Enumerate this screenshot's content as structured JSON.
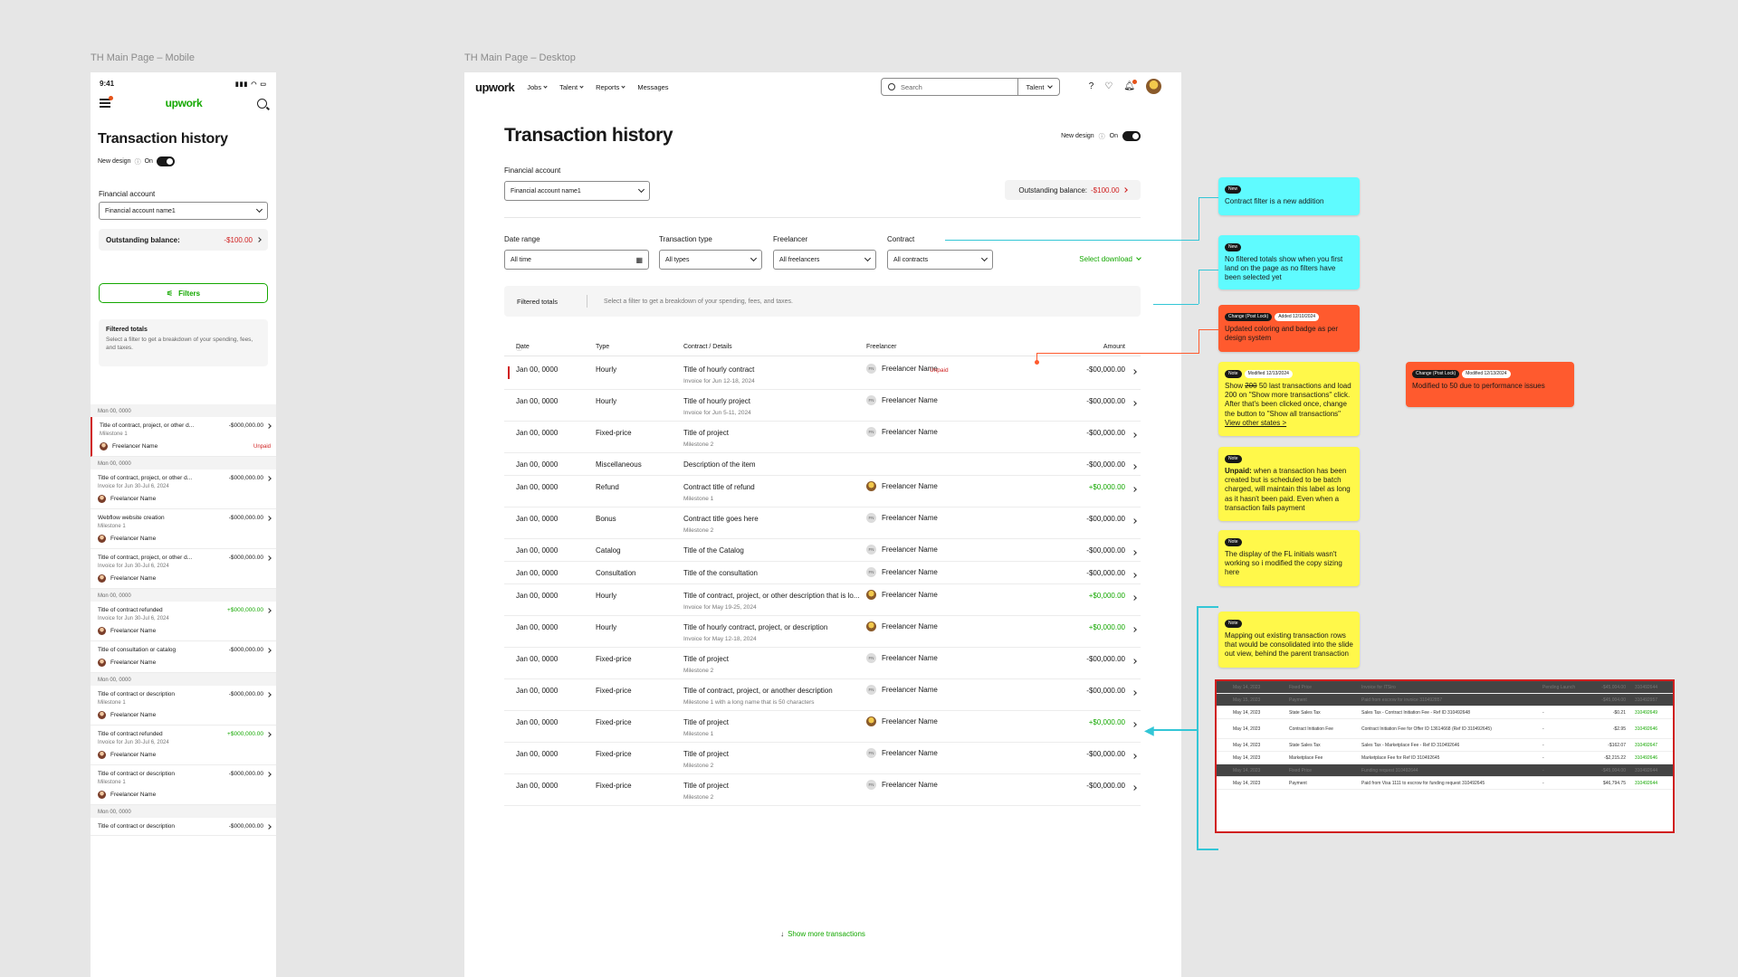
{
  "canvas": {
    "mobile_label": "TH Main Page – Mobile",
    "desktop_label": "TH Main Page – Desktop"
  },
  "mobile": {
    "time": "9:41",
    "logo": "upwork",
    "title": "Transaction history",
    "new_design": "New design",
    "on": "On",
    "financial_account_label": "Financial account",
    "financial_account_value": "Financial account name1",
    "outstanding_label": "Outstanding balance:",
    "outstanding_value": "-$100.00",
    "filters_label": "Filters",
    "filtered_totals_title": "Filtered totals",
    "filtered_totals_desc": "Select a filter to get a breakdown of your spending, fees, and taxes.",
    "list": [
      {
        "date": "Mon 00, 0000"
      },
      {
        "title": "Title of contract, project, or other d...",
        "amount": "-$000,000.00",
        "sub": "Milestone 1",
        "freelancer": "Freelancer Name",
        "badge": "Unpaid",
        "unpaid": true
      },
      {
        "date": "Mon 00, 0000"
      },
      {
        "title": "Title of contract, project, or other d...",
        "amount": "-$000,000.00",
        "sub": "Invoice for Jun 30-Jul 6, 2024",
        "freelancer": "Freelancer Name"
      },
      {
        "title": "Webflow website creation",
        "amount": "-$000,000.00",
        "sub": "Milestone 1",
        "freelancer": "Freelancer Name"
      },
      {
        "title": "Title of contract, project, or other d...",
        "amount": "-$000,000.00",
        "sub": "Invoice for Jun 30-Jul 6, 2024",
        "freelancer": "Freelancer Name"
      },
      {
        "date": "Mon 00, 0000"
      },
      {
        "title": "Title of contract refunded",
        "amount": "+$000,000.00",
        "sub": "Invoice for Jun 30-Jul 6, 2024",
        "freelancer": "Freelancer Name",
        "positive": true
      },
      {
        "title": "Title of consultation or catalog",
        "amount": "-$000,000.00",
        "sub": "",
        "freelancer": "Freelancer Name"
      },
      {
        "date": "Mon 00, 0000"
      },
      {
        "title": "Title of contract or description",
        "amount": "-$000,000.00",
        "sub": "Milestone 1",
        "freelancer": "Freelancer Name"
      },
      {
        "title": "Title of contract refunded",
        "amount": "+$000,000.00",
        "sub": "Invoice for Jun 30-Jul 6, 2024",
        "freelancer": "Freelancer Name",
        "positive": true
      },
      {
        "title": "Title of contract or description",
        "amount": "-$000,000.00",
        "sub": "Milestone 1",
        "freelancer": "Freelancer Name"
      },
      {
        "date": "Mon 00, 0000"
      },
      {
        "title": "Title of contract or description",
        "amount": "-$000,000.00",
        "sub": "",
        "freelancer": ""
      }
    ]
  },
  "desktop": {
    "logo": "upwork",
    "nav": [
      "Jobs",
      "Talent",
      "Reports",
      "Messages"
    ],
    "search_placeholder": "Search",
    "search_scope": "Talent",
    "title": "Transaction history",
    "new_design": "New design",
    "on": "On",
    "financial_account_label": "Financial account",
    "financial_account_value": "Financial account name1",
    "outstanding_label": "Outstanding balance:",
    "outstanding_value": "-$100.00",
    "filters": [
      {
        "label": "Date range",
        "value": "All time"
      },
      {
        "label": "Transaction type",
        "value": "All types"
      },
      {
        "label": "Freelancer",
        "value": "All freelancers"
      },
      {
        "label": "Contract",
        "value": "All contracts"
      }
    ],
    "select_download": "Select download",
    "filtered_totals": "Filtered totals",
    "filtered_totals_desc": "Select a filter to get a breakdown of your spending, fees, and taxes.",
    "columns": {
      "date": "Date",
      "type": "Type",
      "contract": "Contract / Details",
      "freelancer": "Freelancer",
      "amount": "Amount"
    },
    "rows": [
      {
        "date": "Jan 00, 0000",
        "type": "Hourly",
        "title": "Title of hourly contract",
        "sub": "Invoice for Jun 12-18, 2024",
        "freelancer": "Freelancer Name",
        "amount": "-$00,000.00",
        "badge": "Unpaid",
        "unpaid": true,
        "avatar": "initials"
      },
      {
        "date": "Jan 00, 0000",
        "type": "Hourly",
        "title": "Title of hourly project",
        "sub": "Invoice for Jun 5-11, 2024",
        "freelancer": "Freelancer Name",
        "amount": "-$00,000.00",
        "avatar": "initials"
      },
      {
        "date": "Jan 00, 0000",
        "type": "Fixed-price",
        "title": "Title of project",
        "sub": "Milestone 2",
        "freelancer": "Freelancer Name",
        "amount": "-$00,000.00",
        "avatar": "initials"
      },
      {
        "date": "Jan 00, 0000",
        "type": "Miscellaneous",
        "title": "Description of the item",
        "sub": "",
        "freelancer": "",
        "amount": "-$00,000.00"
      },
      {
        "date": "Jan 00, 0000",
        "type": "Refund",
        "title": "Contract title of refund",
        "sub": "Milestone 1",
        "freelancer": "Freelancer Name",
        "amount": "+$0,000.00",
        "positive": true,
        "avatar": "photo"
      },
      {
        "date": "Jan 00, 0000",
        "type": "Bonus",
        "title": "Contract title goes here",
        "sub": "Milestone 2",
        "freelancer": "Freelancer Name",
        "amount": "-$00,000.00",
        "avatar": "initials"
      },
      {
        "date": "Jan 00, 0000",
        "type": "Catalog",
        "title": "Title of the Catalog",
        "sub": "",
        "freelancer": "Freelancer Name",
        "amount": "-$00,000.00",
        "avatar": "initials"
      },
      {
        "date": "Jan 00, 0000",
        "type": "Consultation",
        "title": "Title of the consultation",
        "sub": "",
        "freelancer": "Freelancer Name",
        "amount": "-$00,000.00",
        "avatar": "initials"
      },
      {
        "date": "Jan 00, 0000",
        "type": "Hourly",
        "title": "Title of contract, project, or other description that is lo...",
        "sub": "Invoice for May 19-25, 2024",
        "freelancer": "Freelancer Name",
        "amount": "+$0,000.00",
        "positive": true,
        "avatar": "photo"
      },
      {
        "date": "Jan 00, 0000",
        "type": "Hourly",
        "title": "Title of hourly contract, project, or description",
        "sub": "Invoice for May 12-18, 2024",
        "freelancer": "Freelancer Name",
        "amount": "+$0,000.00",
        "positive": true,
        "avatar": "photo"
      },
      {
        "date": "Jan 00, 0000",
        "type": "Fixed-price",
        "title": "Title of project",
        "sub": "Milestone 2",
        "freelancer": "Freelancer Name",
        "amount": "-$00,000.00",
        "avatar": "initials"
      },
      {
        "date": "Jan 00, 0000",
        "type": "Fixed-price",
        "title": "Title of contract, project, or another description",
        "sub": "Milestone 1 with a long name that is 50 characters",
        "freelancer": "Freelancer Name",
        "amount": "-$00,000.00",
        "avatar": "initials"
      },
      {
        "date": "Jan 00, 0000",
        "type": "Fixed-price",
        "title": "Title of project",
        "sub": "Milestone 1",
        "freelancer": "Freelancer Name",
        "amount": "+$0,000.00",
        "positive": true,
        "avatar": "photo"
      },
      {
        "date": "Jan 00, 0000",
        "type": "Fixed-price",
        "title": "Title of project",
        "sub": "Milestone 2",
        "freelancer": "Freelancer Name",
        "amount": "-$00,000.00",
        "avatar": "initials"
      },
      {
        "date": "Jan 00, 0000",
        "type": "Fixed-price",
        "title": "Title of project",
        "sub": "Milestone 2",
        "freelancer": "Freelancer Name",
        "amount": "-$00,000.00",
        "avatar": "initials"
      }
    ],
    "avatar_initials": "FN",
    "show_more": "Show more transactions"
  },
  "notes": [
    {
      "tags": [
        "New"
      ],
      "text": "Contract filter is a new addition",
      "color": "cyan"
    },
    {
      "tags": [
        "New"
      ],
      "text": "No filtered totals show when you first land on the page as no filters have been selected yet",
      "color": "cyan"
    },
    {
      "tags": [
        "Change (Post Lock)",
        "Added 12/10/2024"
      ],
      "text": "Updated coloring and badge as per design system",
      "color": "red"
    },
    {
      "tags": [
        "Note",
        "Modified 12/13/2024"
      ],
      "text_pre": "Show ",
      "text_strike": "200",
      "text_post": " 50 last transactions and load 200 on \"Show more transactions\" click. After that's been clicked once, change the button to \"Show all transactions\"",
      "link": "View other states >",
      "color": "yellow"
    },
    {
      "tags": [
        "Change (Post Lock)",
        "Modified 12/13/2024"
      ],
      "text": "Modified to 50 due to performance issues",
      "color": "red"
    },
    {
      "tags": [
        "Note"
      ],
      "text_bold": "Unpaid:",
      "text": " when a transaction has been created but is scheduled to be batch charged, will maintain this label as long as it hasn't been paid. Even when a transaction fails payment",
      "color": "yellow"
    },
    {
      "tags": [
        "Note"
      ],
      "text": "The display of the FL initials wasn't working so i modified the copy sizing here",
      "color": "yellow"
    },
    {
      "tags": [
        "Note"
      ],
      "text": "Mapping out existing transaction rows that would be consolidated into the slide out view, behind the parent transaction",
      "color": "yellow"
    }
  ],
  "mini_table": {
    "rows": [
      {
        "date": "May 14, 2023",
        "type": "Fixed Price",
        "desc": "Invoice for ITSiro",
        "status": "Pending Launch",
        "amount": "-$45,004.00",
        "ref": "310492644",
        "dark": true
      },
      {
        "date": "May 15, 2023",
        "type": "Payment",
        "desc": "Paid from escrow for invoice 310492857",
        "status": "",
        "amount": "-$45,004.00",
        "ref": "310492957",
        "dark": true
      },
      {
        "date": "May 14, 2023",
        "type": "State Sales Tax",
        "desc": "Sales Tax - Contract Initiation Fee - Ref ID 310492648",
        "status": "-",
        "amount": "-$0.21",
        "ref": "310492649"
      },
      {
        "date": "May 14, 2023",
        "type": "Contract Initiation Fee",
        "desc": "Contract Initiation Fee for Offer ID 13614668 (Ref ID 310492645)",
        "status": "-",
        "amount": "-$2.95",
        "ref": "310492646",
        "tall": true
      },
      {
        "date": "May 14, 2023",
        "type": "State Sales Tax",
        "desc": "Sales Tax - Marketplace Fee - Ref ID 310492646",
        "status": "-",
        "amount": "-$162.07",
        "ref": "310492647"
      },
      {
        "date": "May 14, 2023",
        "type": "Marketplace Fee",
        "desc": "Marketplace Fee for Ref ID 310492645",
        "status": "-",
        "amount": "-$2,215.22",
        "ref": "310492646"
      },
      {
        "date": "May 14, 2023",
        "type": "Fixed Price",
        "desc": "Funding request 310492644",
        "status": "-",
        "amount": "-$45,004.00",
        "ref": "310492644",
        "dark": true
      },
      {
        "date": "May 14, 2023",
        "type": "Payment",
        "desc": "Paid from Visa 1111 to escrow for funding request 310492645",
        "status": "-",
        "amount": "$46,794.75",
        "ref": "310492644"
      }
    ]
  }
}
